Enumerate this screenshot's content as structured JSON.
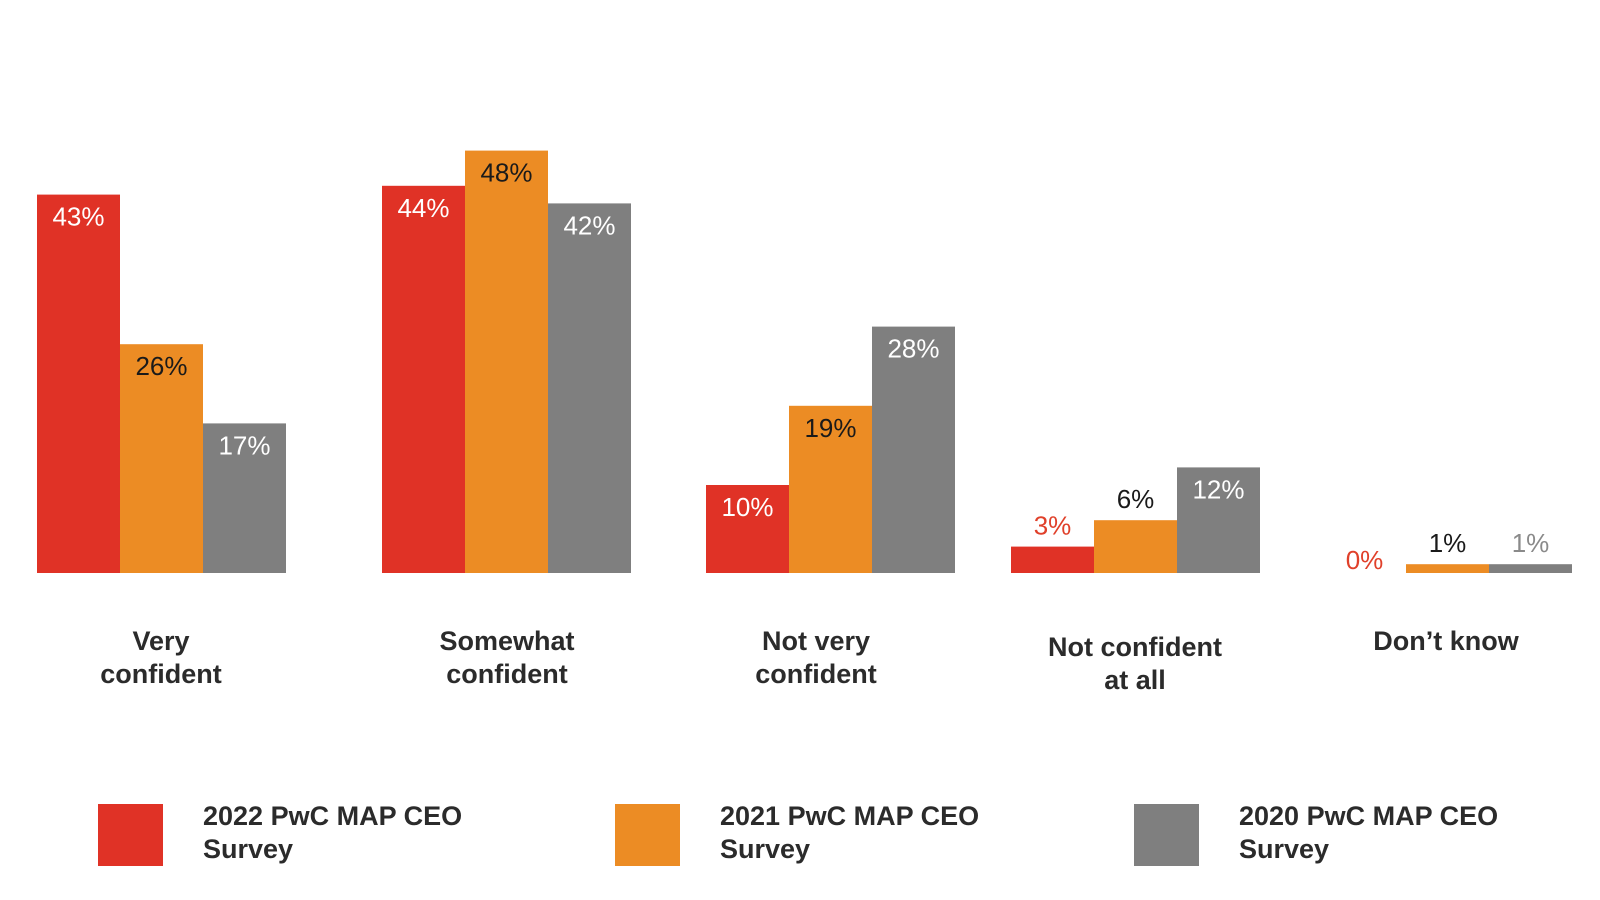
{
  "chart_data": {
    "type": "bar",
    "categories": [
      [
        "Very",
        "confident"
      ],
      [
        "Somewhat",
        "confident"
      ],
      [
        "Not very",
        "confident"
      ],
      [
        "Not confident",
        "at all"
      ],
      [
        "Don’t know"
      ]
    ],
    "series": [
      {
        "name": "2022 PwC MAP CEO Survey",
        "color": "#e03226",
        "values": [
          43,
          44,
          10,
          3,
          0
        ],
        "labels": [
          "43%",
          "44%",
          "10%",
          "3%",
          "0%"
        ]
      },
      {
        "name": "2021 PwC MAP CEO Survey",
        "color": "#ec8c24",
        "values": [
          26,
          48,
          19,
          6,
          1
        ],
        "labels": [
          "26%",
          "48%",
          "19%",
          "6%",
          "1%"
        ]
      },
      {
        "name": "2020 PwC MAP CEO Survey",
        "color": "#7f7f7f",
        "values": [
          17,
          42,
          28,
          12,
          1
        ],
        "labels": [
          "17%",
          "42%",
          "28%",
          "12%",
          "1%"
        ]
      }
    ],
    "ylim": [
      0,
      50
    ],
    "grid": false,
    "legend_position": "bottom",
    "label_colors": {
      "inside_light": "#ffffff",
      "inside_dark": "#1a1a1a",
      "outside_red": "#e0402a",
      "outside_dark": "#1a1a1a",
      "outside_gray": "#8a8a8a"
    }
  },
  "legend": {
    "items": [
      {
        "label_line1": "2022 PwC MAP CEO",
        "label_line2": "Survey",
        "color": "#e03226"
      },
      {
        "label_line1": "2021 PwC MAP CEO",
        "label_line2": "Survey",
        "color": "#ec8c24"
      },
      {
        "label_line1": "2020 PwC MAP CEO",
        "label_line2": "Survey",
        "color": "#7f7f7f"
      }
    ]
  }
}
